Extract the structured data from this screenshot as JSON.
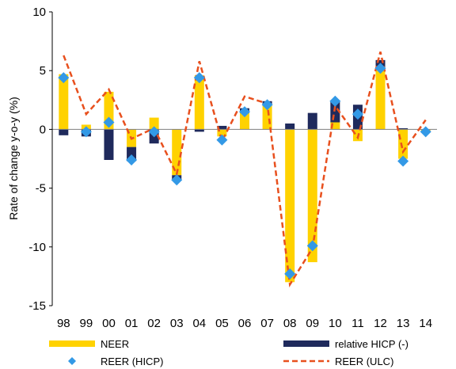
{
  "chart_data": {
    "type": "bar",
    "categories": [
      "98",
      "99",
      "00",
      "01",
      "02",
      "03",
      "04",
      "05",
      "06",
      "07",
      "08",
      "09",
      "10",
      "11",
      "12",
      "13",
      "14"
    ],
    "ylabel": "Rate of change y-o-y (%)",
    "xlabel": "",
    "ylim": [
      -15,
      10
    ],
    "yticks": [
      10,
      5,
      0,
      -5,
      -10,
      -15
    ],
    "grid": false,
    "legend_position": "bottom",
    "series": [
      {
        "name": "NEER",
        "kind": "bar",
        "color": "#FFD200",
        "values": [
          4.7,
          0.4,
          3.2,
          -1.5,
          1.0,
          -3.9,
          4.6,
          -0.6,
          1.4,
          2.1,
          -13.0,
          -11.3,
          0.6,
          -1.0,
          5.2,
          -2.5,
          -0.1
        ]
      },
      {
        "name": "relative HICP (-)",
        "kind": "bar",
        "color": "#1F2A5C",
        "values": [
          -0.5,
          -0.6,
          -2.6,
          -1.2,
          -1.2,
          -0.4,
          -0.2,
          0.3,
          0.4,
          0.3,
          0.5,
          1.4,
          1.8,
          2.1,
          0.7,
          0.1,
          -0.1
        ]
      },
      {
        "name": "REER (HICP)",
        "kind": "marker",
        "color": "#3399E6",
        "values": [
          4.4,
          -0.2,
          0.6,
          -2.6,
          -0.2,
          -4.3,
          4.4,
          -0.9,
          1.5,
          2.1,
          -12.3,
          -9.9,
          2.4,
          1.3,
          5.2,
          -2.7,
          -0.2
        ]
      },
      {
        "name": "REER (ULC)",
        "kind": "line",
        "color": "#E8501E",
        "values": [
          6.3,
          1.3,
          3.4,
          -0.8,
          0.1,
          -3.8,
          5.8,
          -1.0,
          2.8,
          2.2,
          -13.2,
          -10.1,
          2.0,
          -0.7,
          6.6,
          -1.9,
          0.8
        ]
      }
    ]
  }
}
